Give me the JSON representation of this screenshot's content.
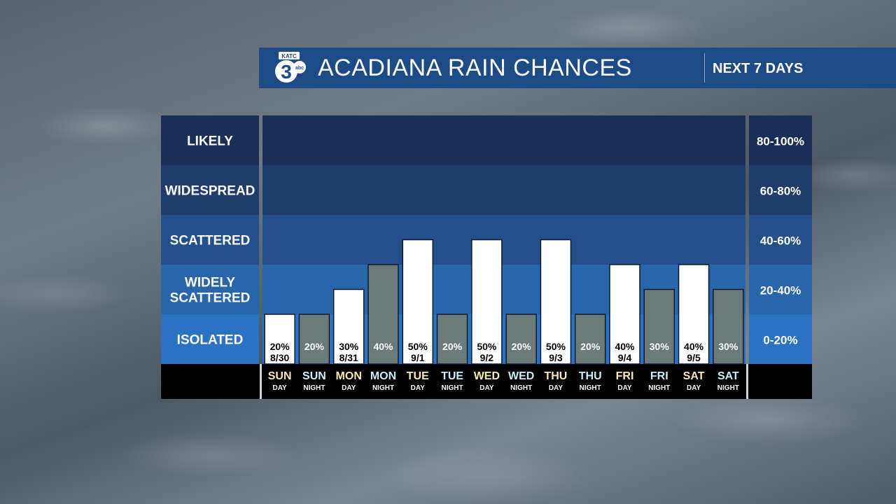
{
  "header": {
    "logo_text": "KATC 3 abc",
    "title": "ACADIANA RAIN CHANCES",
    "subtitle": "NEXT 7 DAYS"
  },
  "colors": {
    "band1": "#2b72c2",
    "band2": "#2865ab",
    "band3": "#244f8b",
    "band4": "#1f3c6c",
    "band5": "#1a2f55",
    "bar_day": "#ffffff",
    "bar_night": "#6c7b78",
    "day_label": "#f7ecb0",
    "night_label": "#c6f0f7"
  },
  "chart_data": {
    "type": "bar",
    "ylim": [
      0,
      100
    ],
    "bands": [
      {
        "label": "ISOLATED",
        "range": "0-20%"
      },
      {
        "label": "WIDELY SCATTERED",
        "range": "20-40%"
      },
      {
        "label": "SCATTERED",
        "range": "40-60%"
      },
      {
        "label": "WIDESPREAD",
        "range": "60-80%"
      },
      {
        "label": "LIKELY",
        "range": "80-100%"
      }
    ],
    "periods": [
      {
        "day": "SUN",
        "part": "DAY",
        "value": 20,
        "label": "20%",
        "date": "8/30",
        "night": false
      },
      {
        "day": "SUN",
        "part": "NIGHT",
        "value": 20,
        "label": "20%",
        "date": "",
        "night": true
      },
      {
        "day": "MON",
        "part": "DAY",
        "value": 30,
        "label": "30%",
        "date": "8/31",
        "night": false
      },
      {
        "day": "MON",
        "part": "NIGHT",
        "value": 40,
        "label": "40%",
        "date": "",
        "night": true
      },
      {
        "day": "TUE",
        "part": "DAY",
        "value": 50,
        "label": "50%",
        "date": "9/1",
        "night": false
      },
      {
        "day": "TUE",
        "part": "NIGHT",
        "value": 20,
        "label": "20%",
        "date": "",
        "night": true
      },
      {
        "day": "WED",
        "part": "DAY",
        "value": 50,
        "label": "50%",
        "date": "9/2",
        "night": false
      },
      {
        "day": "WED",
        "part": "NIGHT",
        "value": 20,
        "label": "20%",
        "date": "",
        "night": true
      },
      {
        "day": "THU",
        "part": "DAY",
        "value": 50,
        "label": "50%",
        "date": "9/3",
        "night": false
      },
      {
        "day": "THU",
        "part": "NIGHT",
        "value": 20,
        "label": "20%",
        "date": "",
        "night": true
      },
      {
        "day": "FRI",
        "part": "DAY",
        "value": 40,
        "label": "40%",
        "date": "9/4",
        "night": false
      },
      {
        "day": "FRI",
        "part": "NIGHT",
        "value": 30,
        "label": "30%",
        "date": "",
        "night": true
      },
      {
        "day": "SAT",
        "part": "DAY",
        "value": 40,
        "label": "40%",
        "date": "9/5",
        "night": false
      },
      {
        "day": "SAT",
        "part": "NIGHT",
        "value": 30,
        "label": "30%",
        "date": "",
        "night": true
      }
    ]
  }
}
